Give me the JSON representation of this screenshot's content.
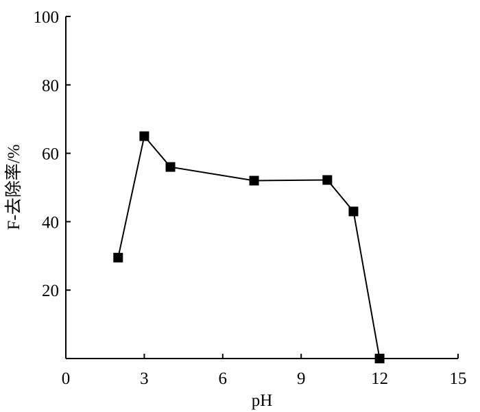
{
  "chart_data": {
    "type": "line",
    "xlabel": "pH",
    "ylabel": "F-去除率/%",
    "xlim": [
      0,
      15
    ],
    "ylim": [
      0,
      100
    ],
    "x_ticks": [
      "0",
      "3",
      "6",
      "9",
      "12",
      "15"
    ],
    "y_ticks": [
      "20",
      "40",
      "60",
      "80",
      "100"
    ],
    "grid": false,
    "marker": "square",
    "series": [
      {
        "x": [
          2,
          3,
          4,
          7.2,
          10,
          11,
          12
        ],
        "y": [
          29.5,
          65,
          56,
          52,
          52.2,
          43,
          0
        ]
      }
    ]
  }
}
